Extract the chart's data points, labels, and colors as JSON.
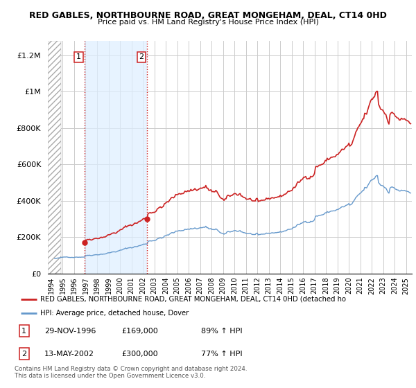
{
  "title": "RED GABLES, NORTHBOURNE ROAD, GREAT MONGEHAM, DEAL, CT14 0HD",
  "subtitle": "Price paid vs. HM Land Registry's House Price Index (HPI)",
  "ylabel_ticks": [
    "£0",
    "£200K",
    "£400K",
    "£600K",
    "£800K",
    "£1M",
    "£1.2M"
  ],
  "ytick_values": [
    0,
    200000,
    400000,
    600000,
    800000,
    1000000,
    1200000
  ],
  "ylim": [
    0,
    1280000
  ],
  "xlim_start": 1993.7,
  "xlim_end": 2025.5,
  "sale1_x": 1996.91,
  "sale1_price": 169000,
  "sale2_x": 2002.37,
  "sale2_price": 300000,
  "red_line_color": "#cc2222",
  "blue_line_color": "#6699cc",
  "grid_color": "#cccccc",
  "shaded_color": "#ddeeff",
  "background_color": "#ffffff",
  "legend_label_red": "RED GABLES, NORTHBOURNE ROAD, GREAT MONGEHAM, DEAL, CT14 0HD (detached ho",
  "legend_label_blue": "HPI: Average price, detached house, Dover",
  "footnote": "Contains HM Land Registry data © Crown copyright and database right 2024.\nThis data is licensed under the Open Government Licence v3.0.",
  "table_rows": [
    {
      "num": "1",
      "date": "29-NOV-1996",
      "price": "£169,000",
      "hpi": "89% ↑ HPI"
    },
    {
      "num": "2",
      "date": "13-MAY-2002",
      "price": "£300,000",
      "hpi": "77% ↑ HPI"
    }
  ]
}
